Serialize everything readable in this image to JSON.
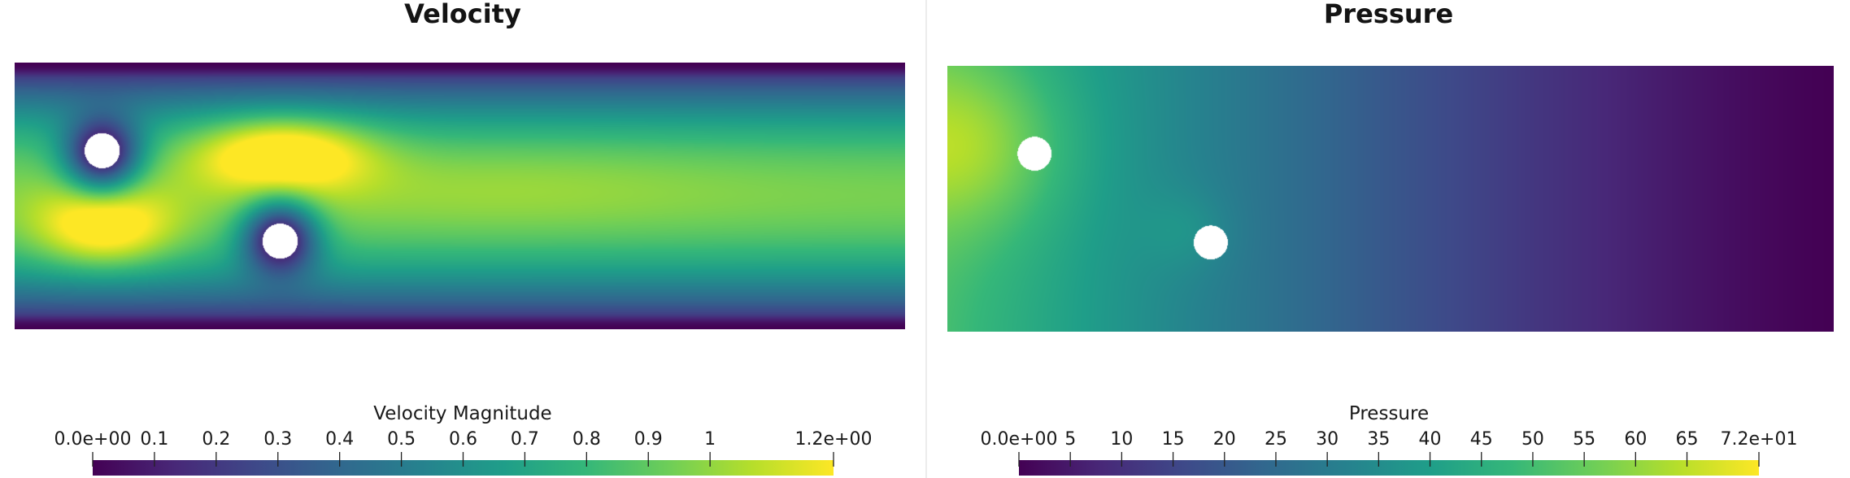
{
  "colormap": {
    "name": "viridis",
    "stops": [
      "#440154",
      "#482878",
      "#3e4989",
      "#31688e",
      "#26828e",
      "#1f9e89",
      "#35b779",
      "#6ece58",
      "#b5de2b",
      "#fde725"
    ]
  },
  "panels": [
    {
      "id": "velocity",
      "title": "Velocity",
      "colorbar": {
        "title": "Velocity Magnitude",
        "min": 0,
        "max": 1.2,
        "ticks": [
          {
            "value": 0,
            "label": "0.0e+00"
          },
          {
            "value": 0.1,
            "label": "0.1"
          },
          {
            "value": 0.2,
            "label": "0.2"
          },
          {
            "value": 0.3,
            "label": "0.3"
          },
          {
            "value": 0.4,
            "label": "0.4"
          },
          {
            "value": 0.5,
            "label": "0.5"
          },
          {
            "value": 0.6,
            "label": "0.6"
          },
          {
            "value": 0.7,
            "label": "0.7"
          },
          {
            "value": 0.8,
            "label": "0.8"
          },
          {
            "value": 0.9,
            "label": "0.9"
          },
          {
            "value": 1.0,
            "label": "1"
          },
          {
            "value": 1.2,
            "label": "1.2e+00"
          }
        ]
      }
    },
    {
      "id": "pressure",
      "title": "Pressure",
      "colorbar": {
        "title": "Pressure",
        "min": 0,
        "max": 72,
        "ticks": [
          {
            "value": 0,
            "label": "0.0e+00"
          },
          {
            "value": 5,
            "label": "5"
          },
          {
            "value": 10,
            "label": "10"
          },
          {
            "value": 15,
            "label": "15"
          },
          {
            "value": 20,
            "label": "20"
          },
          {
            "value": 25,
            "label": "25"
          },
          {
            "value": 30,
            "label": "30"
          },
          {
            "value": 35,
            "label": "35"
          },
          {
            "value": 40,
            "label": "40"
          },
          {
            "value": 45,
            "label": "45"
          },
          {
            "value": 50,
            "label": "50"
          },
          {
            "value": 55,
            "label": "55"
          },
          {
            "value": 60,
            "label": "60"
          },
          {
            "value": 65,
            "label": "65"
          },
          {
            "value": 72,
            "label": "7.2e+01"
          }
        ]
      }
    }
  ]
}
